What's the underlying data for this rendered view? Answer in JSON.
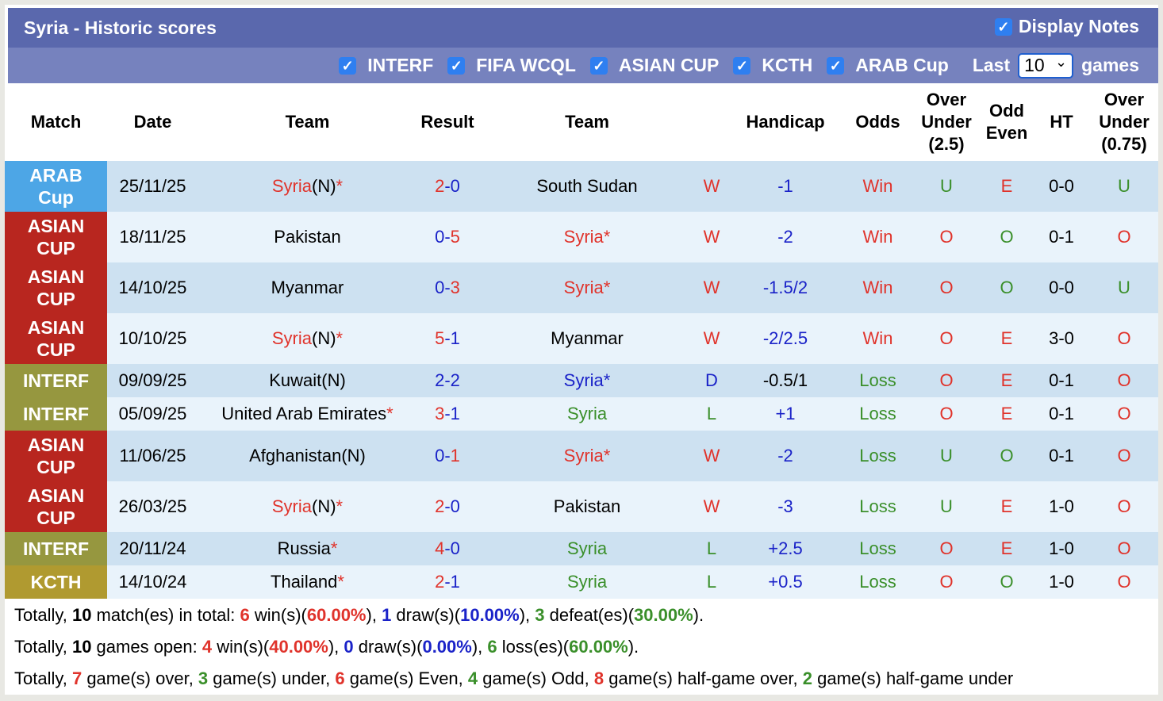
{
  "title": "Syria - Historic scores",
  "display_notes": {
    "label": "Display Notes",
    "checked": true
  },
  "filters": [
    {
      "label": "INTERF",
      "checked": true
    },
    {
      "label": "FIFA WCQL",
      "checked": true
    },
    {
      "label": "ASIAN CUP",
      "checked": true
    },
    {
      "label": "KCTH",
      "checked": true
    },
    {
      "label": "ARAB Cup",
      "checked": true
    }
  ],
  "last_label": "Last",
  "last_value": "10",
  "games_label": "games",
  "columns": [
    "Match",
    "Date",
    "Team",
    "Result",
    "Team",
    "",
    "Handicap",
    "Odds",
    "Over Under (2.5)",
    "Odd Even",
    "HT",
    "Over Under (0.75)"
  ],
  "colors": {
    "ARAB Cup": "#4da6e6",
    "ASIAN CUP": "#b8261f",
    "INTERF": "#96973f",
    "KCTH": "#b09a30",
    "red": "#e0332b",
    "blue": "#1a22c8",
    "green": "#3a8f2a"
  },
  "rows": [
    {
      "match": "ARAB Cup",
      "date": "25/11/25",
      "home": {
        "name": "Syria",
        "color": "red",
        "tag": "(N)",
        "star": "*"
      },
      "score": [
        "2",
        "0"
      ],
      "score_colors": [
        "red",
        "blue"
      ],
      "away": {
        "name": "South Sudan",
        "color": "black",
        "tag": "",
        "star": ""
      },
      "wl": "W",
      "handicap": "-1",
      "hcolor": "blue",
      "odds": "Win",
      "ou": "U",
      "oe": "E",
      "ht": "0-0",
      "ou2": "U"
    },
    {
      "match": "ASIAN CUP",
      "date": "18/11/25",
      "home": {
        "name": "Pakistan",
        "color": "black",
        "tag": "",
        "star": ""
      },
      "score": [
        "0",
        "5"
      ],
      "score_colors": [
        "blue",
        "red"
      ],
      "away": {
        "name": "Syria",
        "color": "red",
        "tag": "",
        "star": "*"
      },
      "wl": "W",
      "handicap": "-2",
      "hcolor": "blue",
      "odds": "Win",
      "ou": "O",
      "oe": "O",
      "ht": "0-1",
      "ou2": "O"
    },
    {
      "match": "ASIAN CUP",
      "date": "14/10/25",
      "home": {
        "name": "Myanmar",
        "color": "black",
        "tag": "",
        "star": ""
      },
      "score": [
        "0",
        "3"
      ],
      "score_colors": [
        "blue",
        "red"
      ],
      "away": {
        "name": "Syria",
        "color": "red",
        "tag": "",
        "star": "*"
      },
      "wl": "W",
      "handicap": "-1.5/2",
      "hcolor": "blue",
      "odds": "Win",
      "ou": "O",
      "oe": "O",
      "ht": "0-0",
      "ou2": "U"
    },
    {
      "match": "ASIAN CUP",
      "date": "10/10/25",
      "home": {
        "name": "Syria",
        "color": "red",
        "tag": "(N)",
        "star": "*"
      },
      "score": [
        "5",
        "1"
      ],
      "score_colors": [
        "red",
        "blue"
      ],
      "away": {
        "name": "Myanmar",
        "color": "black",
        "tag": "",
        "star": ""
      },
      "wl": "W",
      "handicap": "-2/2.5",
      "hcolor": "blue",
      "odds": "Win",
      "ou": "O",
      "oe": "E",
      "ht": "3-0",
      "ou2": "O"
    },
    {
      "match": "INTERF",
      "date": "09/09/25",
      "home": {
        "name": "Kuwait",
        "color": "black",
        "tag": "(N)",
        "star": ""
      },
      "score": [
        "2",
        "2"
      ],
      "score_colors": [
        "blue",
        "blue"
      ],
      "away": {
        "name": "Syria",
        "color": "blue",
        "tag": "",
        "star": "*"
      },
      "wl": "D",
      "handicap": "-0.5/1",
      "hcolor": "black",
      "odds": "Loss",
      "ou": "O",
      "oe": "E",
      "ht": "0-1",
      "ou2": "O"
    },
    {
      "match": "INTERF",
      "date": "05/09/25",
      "home": {
        "name": "United Arab Emirates",
        "color": "black",
        "tag": "",
        "star": "*"
      },
      "score": [
        "3",
        "1"
      ],
      "score_colors": [
        "red",
        "blue"
      ],
      "away": {
        "name": "Syria",
        "color": "green",
        "tag": "",
        "star": ""
      },
      "wl": "L",
      "handicap": "+1",
      "hcolor": "blue",
      "odds": "Loss",
      "ou": "O",
      "oe": "E",
      "ht": "0-1",
      "ou2": "O"
    },
    {
      "match": "ASIAN CUP",
      "date": "11/06/25",
      "home": {
        "name": "Afghanistan",
        "color": "black",
        "tag": "(N)",
        "star": ""
      },
      "score": [
        "0",
        "1"
      ],
      "score_colors": [
        "blue",
        "red"
      ],
      "away": {
        "name": "Syria",
        "color": "red",
        "tag": "",
        "star": "*"
      },
      "wl": "W",
      "handicap": "-2",
      "hcolor": "blue",
      "odds": "Loss",
      "ou": "U",
      "oe": "O",
      "ht": "0-1",
      "ou2": "O"
    },
    {
      "match": "ASIAN CUP",
      "date": "26/03/25",
      "home": {
        "name": "Syria",
        "color": "red",
        "tag": "(N)",
        "star": "*"
      },
      "score": [
        "2",
        "0"
      ],
      "score_colors": [
        "red",
        "blue"
      ],
      "away": {
        "name": "Pakistan",
        "color": "black",
        "tag": "",
        "star": ""
      },
      "wl": "W",
      "handicap": "-3",
      "hcolor": "blue",
      "odds": "Loss",
      "ou": "U",
      "oe": "E",
      "ht": "1-0",
      "ou2": "O"
    },
    {
      "match": "INTERF",
      "date": "20/11/24",
      "home": {
        "name": "Russia",
        "color": "black",
        "tag": "",
        "star": "*"
      },
      "score": [
        "4",
        "0"
      ],
      "score_colors": [
        "red",
        "blue"
      ],
      "away": {
        "name": "Syria",
        "color": "green",
        "tag": "",
        "star": ""
      },
      "wl": "L",
      "handicap": "+2.5",
      "hcolor": "blue",
      "odds": "Loss",
      "ou": "O",
      "oe": "E",
      "ht": "1-0",
      "ou2": "O"
    },
    {
      "match": "KCTH",
      "date": "14/10/24",
      "home": {
        "name": "Thailand",
        "color": "black",
        "tag": "",
        "star": "*"
      },
      "score": [
        "2",
        "1"
      ],
      "score_colors": [
        "red",
        "blue"
      ],
      "away": {
        "name": "Syria",
        "color": "green",
        "tag": "",
        "star": ""
      },
      "wl": "L",
      "handicap": "+0.5",
      "hcolor": "blue",
      "odds": "Loss",
      "ou": "O",
      "oe": "O",
      "ht": "1-0",
      "ou2": "O"
    }
  ],
  "summary": [
    [
      [
        "Totally, ",
        "black",
        false
      ],
      [
        "10",
        "black",
        true
      ],
      [
        " match(es) in total: ",
        "black",
        false
      ],
      [
        "6",
        "red",
        true
      ],
      [
        " win(s)(",
        "black",
        false
      ],
      [
        "60.00%",
        "red",
        true
      ],
      [
        "), ",
        "black",
        false
      ],
      [
        "1",
        "blue",
        true
      ],
      [
        " draw(s)(",
        "black",
        false
      ],
      [
        "10.00%",
        "blue",
        true
      ],
      [
        "), ",
        "black",
        false
      ],
      [
        "3",
        "green",
        true
      ],
      [
        " defeat(es)(",
        "black",
        false
      ],
      [
        "30.00%",
        "green",
        true
      ],
      [
        ").",
        "black",
        false
      ]
    ],
    [
      [
        "Totally, ",
        "black",
        false
      ],
      [
        "10",
        "black",
        true
      ],
      [
        " games open: ",
        "black",
        false
      ],
      [
        "4",
        "red",
        true
      ],
      [
        " win(s)(",
        "black",
        false
      ],
      [
        "40.00%",
        "red",
        true
      ],
      [
        "), ",
        "black",
        false
      ],
      [
        "0",
        "blue",
        true
      ],
      [
        " draw(s)(",
        "black",
        false
      ],
      [
        "0.00%",
        "blue",
        true
      ],
      [
        "), ",
        "black",
        false
      ],
      [
        "6",
        "green",
        true
      ],
      [
        " loss(es)(",
        "black",
        false
      ],
      [
        "60.00%",
        "green",
        true
      ],
      [
        ").",
        "black",
        false
      ]
    ],
    [
      [
        "Totally, ",
        "black",
        false
      ],
      [
        "7",
        "red",
        true
      ],
      [
        " game(s) over, ",
        "black",
        false
      ],
      [
        "3",
        "green",
        true
      ],
      [
        " game(s) under, ",
        "black",
        false
      ],
      [
        "6",
        "red",
        true
      ],
      [
        " game(s) Even, ",
        "black",
        false
      ],
      [
        "4",
        "green",
        true
      ],
      [
        " game(s) Odd, ",
        "black",
        false
      ],
      [
        "8",
        "red",
        true
      ],
      [
        " game(s) half-game over, ",
        "black",
        false
      ],
      [
        "2",
        "green",
        true
      ],
      [
        " game(s) half-game under",
        "black",
        false
      ]
    ]
  ]
}
